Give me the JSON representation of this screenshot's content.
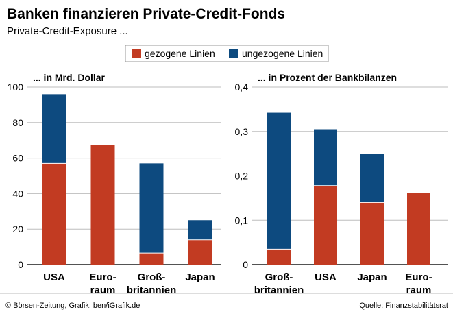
{
  "title": "Banken finanzieren Private-Credit-Fonds",
  "subtitle": "Private-Credit-Exposure ...",
  "footer": {
    "left": "© Börsen-Zeitung, Grafik: ben/iGrafik.de",
    "right": "Quelle: Finanzstabilitätsrat"
  },
  "colors": {
    "gezogen": "#c23b22",
    "ungezogen": "#0d4a7f"
  },
  "chart_data": [
    {
      "type": "bar",
      "stacked": true,
      "title": "... in Mrd. Dollar",
      "categories": [
        [
          "USA"
        ],
        [
          "Euro-",
          "raum"
        ],
        [
          "Groß-",
          "britannien"
        ],
        [
          "Japan"
        ]
      ],
      "series": [
        {
          "name": "gezogene Linien",
          "values": [
            57,
            67.5,
            6.5,
            14
          ]
        },
        {
          "name": "ungezogene Linien",
          "values": [
            39,
            0,
            50.5,
            11
          ]
        }
      ],
      "ylim": [
        0,
        100
      ],
      "yticks": [
        0,
        20,
        40,
        60,
        80,
        100
      ],
      "ytick_labels": [
        "0",
        "20",
        "40",
        "60",
        "80",
        "100"
      ],
      "grid": true,
      "legend": "top-center"
    },
    {
      "type": "bar",
      "stacked": true,
      "title": "... in Prozent der Bankbilanzen",
      "categories": [
        [
          "Groß-",
          "britannien"
        ],
        [
          "USA"
        ],
        [
          "Japan"
        ],
        [
          "Euro-",
          "raum"
        ]
      ],
      "series": [
        {
          "name": "gezogene Linien",
          "values": [
            0.035,
            0.178,
            0.14,
            0.162
          ]
        },
        {
          "name": "ungezogene Linien",
          "values": [
            0.307,
            0.127,
            0.11,
            0
          ]
        }
      ],
      "ylim": [
        0,
        0.4
      ],
      "yticks": [
        0,
        0.1,
        0.2,
        0.3,
        0.4
      ],
      "ytick_labels": [
        "0",
        "0,1",
        "0,2",
        "0,3",
        "0,4"
      ],
      "grid": true,
      "legend": "top-center"
    }
  ]
}
